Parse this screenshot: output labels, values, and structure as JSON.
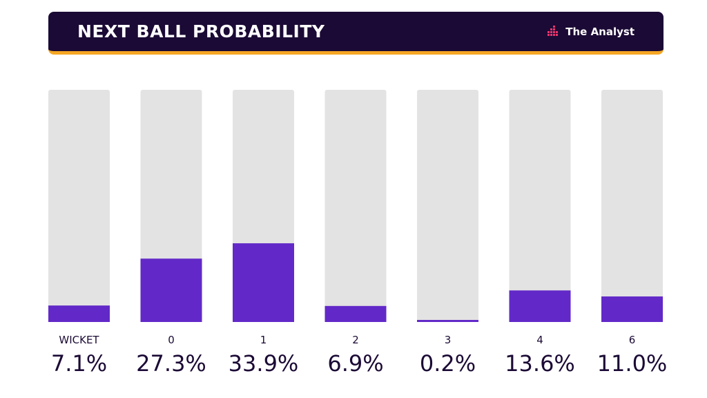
{
  "header": {
    "title": "NEXT BALL PROBABILITY",
    "brand": "The Analyst"
  },
  "colors": {
    "header_bg": "#1b0a35",
    "accent_line": "#f5a623",
    "bar_fill": "#6229c8",
    "bar_track": "#e3e3e3",
    "text_dark": "#1b0a35",
    "logo_pink": "#e8356d"
  },
  "icons": {
    "brand_logo": "analyst-logo-icon"
  },
  "chart_data": {
    "type": "bar",
    "title": "NEXT BALL PROBABILITY",
    "categories": [
      "WICKET",
      "0",
      "1",
      "2",
      "3",
      "4",
      "6"
    ],
    "values": [
      7.1,
      27.3,
      33.9,
      6.9,
      0.2,
      13.6,
      11.0
    ],
    "value_labels": [
      "7.1%",
      "27.3%",
      "33.9%",
      "6.9%",
      "0.2%",
      "13.6%",
      "11.0%"
    ],
    "ylim": [
      0,
      100
    ],
    "unit": "%",
    "grid": false,
    "legend": "none"
  }
}
